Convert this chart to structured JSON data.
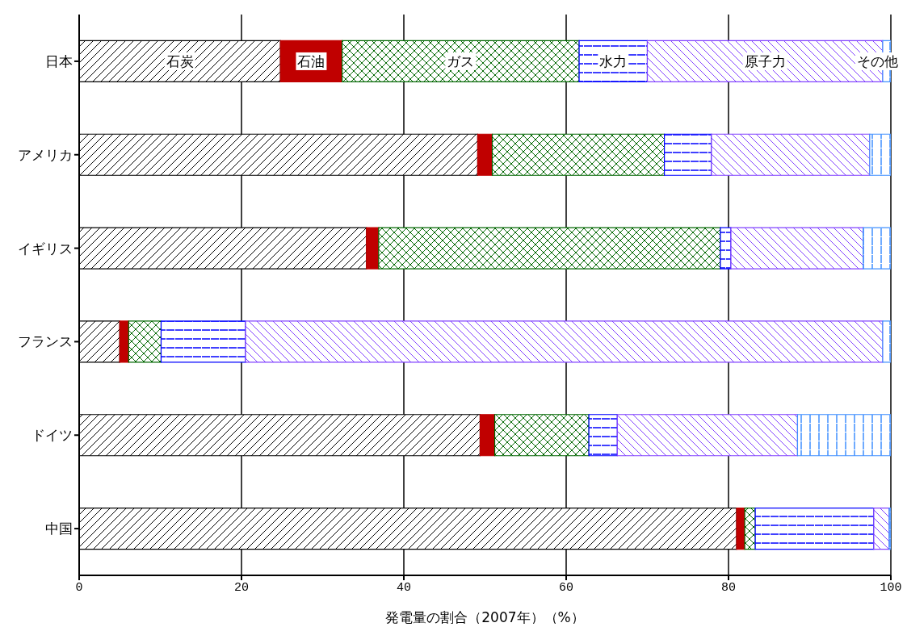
{
  "chart_data": {
    "type": "bar",
    "orientation": "horizontal",
    "stacked": true,
    "xlabel": "発電量の割合（2007年）（%）",
    "categories": [
      "日本",
      "アメリカ",
      "イギリス",
      "フランス",
      "ドイツ",
      "中国"
    ],
    "series": [
      {
        "name": "石炭",
        "color": "#000000",
        "values": [
          24.8,
          49.1,
          35.4,
          5.0,
          49.4,
          81.0
        ]
      },
      {
        "name": "石油",
        "color": "#c00000",
        "values": [
          7.6,
          1.8,
          1.5,
          1.1,
          1.8,
          1.0
        ]
      },
      {
        "name": "ガス",
        "color": "#006600",
        "values": [
          29.2,
          21.2,
          42.1,
          4.0,
          11.6,
          1.3
        ]
      },
      {
        "name": "水力",
        "color": "#0000ff",
        "values": [
          8.4,
          5.8,
          1.3,
          10.4,
          3.5,
          14.6
        ]
      },
      {
        "name": "原子力",
        "color": "#8040ff",
        "values": [
          29.0,
          19.5,
          16.3,
          78.5,
          22.2,
          1.9
        ]
      },
      {
        "name": "その他",
        "color": "#3f8fff",
        "values": [
          1.0,
          2.6,
          3.4,
          1.0,
          11.5,
          0.2
        ]
      }
    ],
    "xlim": [
      0,
      100
    ],
    "xticks": [
      0,
      20,
      40,
      60,
      80,
      100
    ],
    "grid": "x",
    "legend": false
  }
}
